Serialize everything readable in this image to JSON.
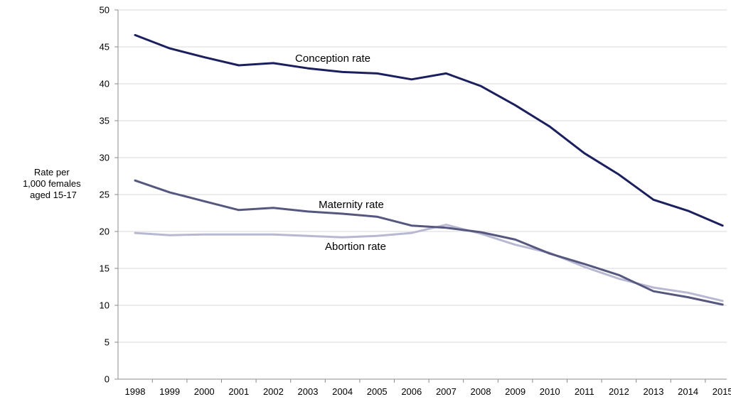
{
  "chart_data": {
    "type": "line",
    "title": "",
    "xlabel": "",
    "ylabel": [
      "Rate per",
      "1,000 females",
      "aged 15-17"
    ],
    "ylim": [
      0,
      50
    ],
    "yticks": [
      0,
      5,
      10,
      15,
      20,
      25,
      30,
      35,
      40,
      45,
      50
    ],
    "grid": true,
    "legend": "inline labels",
    "categories": [
      "1998",
      "1999",
      "2000",
      "2001",
      "2002",
      "2003",
      "2004",
      "2005",
      "2006",
      "2007",
      "2008",
      "2009",
      "2010",
      "2011",
      "2012",
      "2013",
      "2014",
      "2015"
    ],
    "series": [
      {
        "name": "Conception rate",
        "color": "#1b1f5e",
        "values": [
          46.6,
          44.8,
          43.6,
          42.5,
          42.8,
          42.1,
          41.6,
          41.4,
          40.6,
          41.4,
          39.7,
          37.1,
          34.2,
          30.6,
          27.7,
          24.3,
          22.8,
          20.8
        ]
      },
      {
        "name": "Maternity rate",
        "color": "#55577f",
        "values": [
          26.9,
          25.3,
          24.1,
          22.9,
          23.2,
          22.7,
          22.4,
          22.0,
          20.8,
          20.5,
          19.9,
          18.9,
          17.0,
          15.6,
          14.1,
          11.9,
          11.1,
          10.1
        ]
      },
      {
        "name": "Abortion rate",
        "color": "#b9b8d3",
        "values": [
          19.8,
          19.5,
          19.6,
          19.6,
          19.6,
          19.4,
          19.2,
          19.4,
          19.8,
          20.9,
          19.7,
          18.2,
          17.1,
          15.2,
          13.6,
          12.4,
          11.7,
          10.6
        ]
      }
    ]
  }
}
